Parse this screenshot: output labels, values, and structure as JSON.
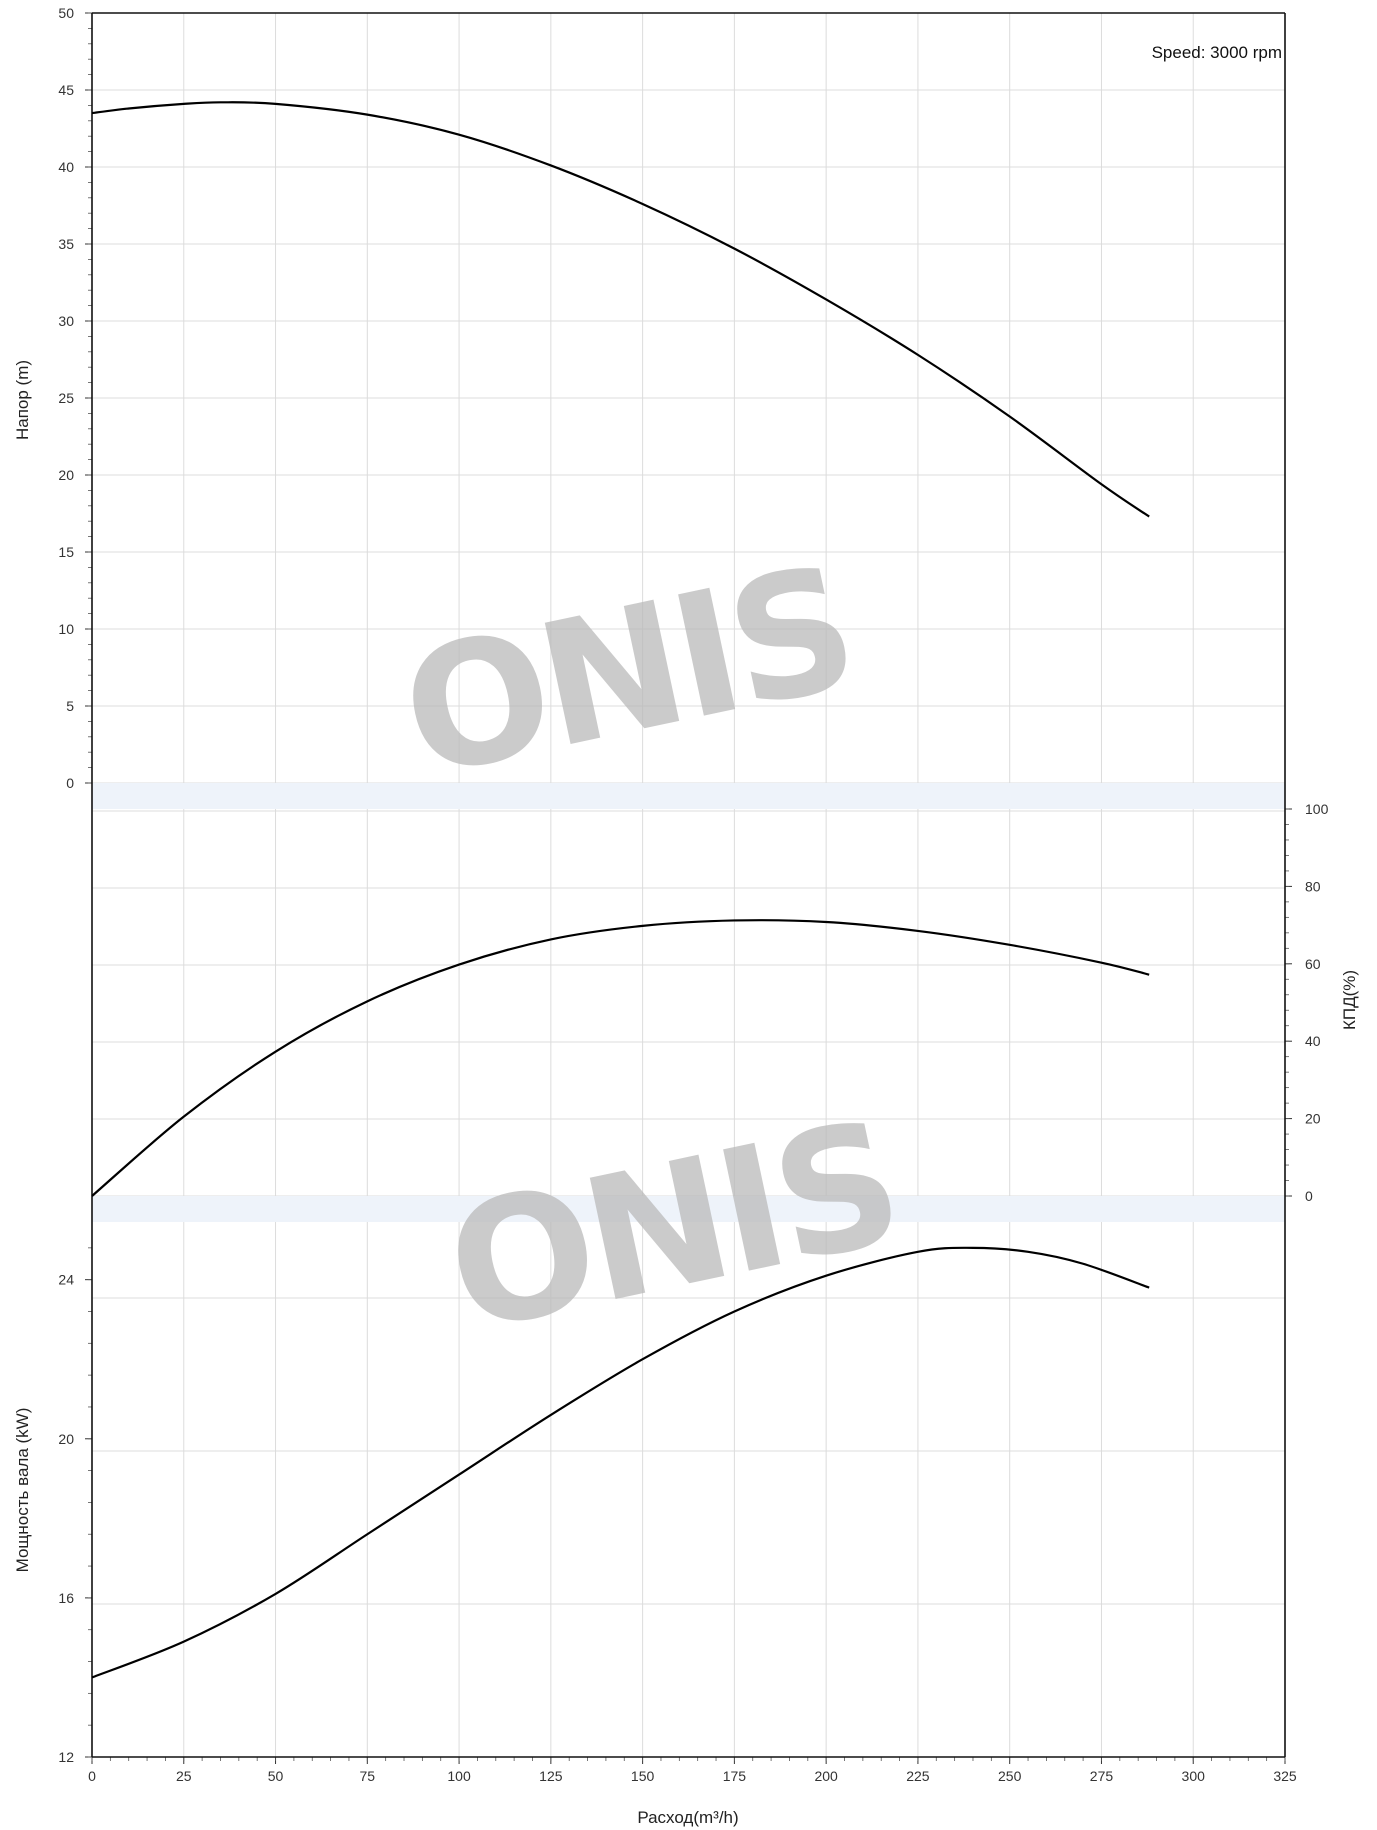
{
  "chart_data": {
    "type": "line",
    "annotation": "Speed: 3000 rpm",
    "watermark": "ONIS",
    "grid": true,
    "x_axis": {
      "label": "Расход(m³/h)",
      "range": [
        0,
        325
      ],
      "ticks": [
        0,
        25,
        50,
        75,
        100,
        125,
        150,
        175,
        200,
        225,
        250,
        275,
        300,
        325
      ]
    },
    "panels": [
      {
        "id": "head",
        "axis_side": "left",
        "ylabel": "Напор (m)",
        "ylim": [
          0,
          50
        ],
        "ticks": [
          0,
          5,
          10,
          15,
          20,
          25,
          30,
          35,
          40,
          45,
          50
        ],
        "series": [
          {
            "x": [
              0,
              10,
              25,
              35,
              50,
              75,
              100,
              125,
              150,
              175,
              200,
              225,
              250,
              275,
              288
            ],
            "y": [
              43.5,
              43.8,
              44.1,
              44.2,
              44.1,
              43.4,
              42.1,
              40.1,
              37.6,
              34.7,
              31.4,
              27.8,
              23.8,
              19.4,
              17.3
            ],
            "color": "#000000"
          }
        ]
      },
      {
        "id": "efficiency",
        "axis_side": "right",
        "ylabel": "КПД(%)",
        "ylim": [
          0,
          100
        ],
        "ticks": [
          0,
          20,
          40,
          60,
          80,
          100
        ],
        "series": [
          {
            "x": [
              0,
              25,
              50,
              75,
              100,
              125,
              150,
              175,
              200,
              225,
              250,
              275,
              288
            ],
            "y": [
              0,
              20.5,
              37.3,
              50.3,
              59.8,
              66.3,
              69.8,
              71.2,
              70.8,
              68.5,
              64.9,
              60.3,
              57.2
            ],
            "color": "#000000"
          }
        ]
      },
      {
        "id": "power",
        "axis_side": "left",
        "ylabel": "Мощность вала (kW)",
        "ylim": [
          12,
          25.5
        ],
        "ticks": [
          12,
          16,
          20,
          24
        ],
        "series": [
          {
            "x": [
              0,
              25,
              50,
              75,
              100,
              125,
              150,
              175,
              200,
              225,
              240,
              255,
              270,
              288
            ],
            "y": [
              14.0,
              14.9,
              16.1,
              17.6,
              19.1,
              20.6,
              22.0,
              23.2,
              24.1,
              24.7,
              24.8,
              24.7,
              24.4,
              23.8
            ],
            "color": "#000000"
          }
        ]
      }
    ]
  }
}
